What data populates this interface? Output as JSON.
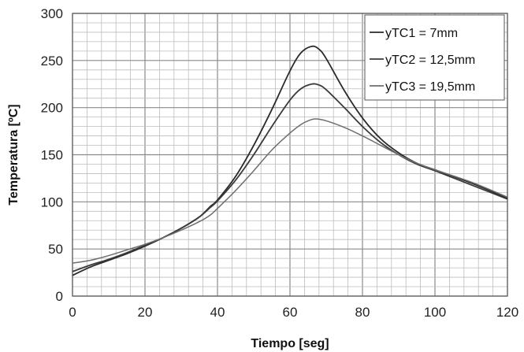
{
  "chart_data": {
    "type": "line",
    "xlabel": "Tiempo [seg]",
    "ylabel": "Temperatura [ºC]",
    "xlim": [
      0,
      120
    ],
    "ylim": [
      0,
      300
    ],
    "x_ticks": [
      0,
      20,
      40,
      60,
      80,
      100,
      120
    ],
    "y_ticks": [
      0,
      50,
      100,
      150,
      200,
      250,
      300
    ],
    "grid": true,
    "legend_position": "top-right",
    "series": [
      {
        "name": "yTC1 = 7mm",
        "color": "#2a2a2a",
        "x": [
          0,
          5,
          10,
          15,
          20,
          25,
          30,
          35,
          38,
          40,
          45,
          50,
          55,
          60,
          63,
          66,
          68,
          70,
          75,
          80,
          85,
          90,
          95,
          100,
          110,
          120
        ],
        "y": [
          22,
          31,
          38,
          45,
          53,
          62,
          72,
          84,
          95,
          102,
          127,
          160,
          198,
          239,
          258,
          265,
          262,
          252,
          218,
          189,
          167,
          152,
          141,
          134,
          120,
          104
        ]
      },
      {
        "name": "yTC2 = 12,5mm",
        "color": "#3a3a3a",
        "x": [
          0,
          5,
          10,
          15,
          20,
          25,
          30,
          35,
          38,
          40,
          45,
          50,
          55,
          60,
          63,
          66,
          68,
          70,
          75,
          80,
          85,
          90,
          95,
          100,
          110,
          120
        ],
        "y": [
          26,
          33,
          39,
          46,
          54,
          62,
          72,
          84,
          94,
          101,
          123,
          150,
          180,
          208,
          220,
          225,
          224,
          219,
          200,
          180,
          163,
          150,
          140,
          133,
          118,
          103
        ]
      },
      {
        "name": "yTC3 = 19,5mm",
        "color": "#6e6e6e",
        "x": [
          0,
          5,
          10,
          15,
          20,
          25,
          30,
          35,
          38,
          40,
          45,
          50,
          55,
          60,
          63,
          65,
          67,
          70,
          75,
          80,
          85,
          90,
          95,
          100,
          110,
          120
        ],
        "y": [
          35,
          38,
          43,
          49,
          55,
          62,
          70,
          79,
          86,
          93,
          112,
          133,
          155,
          173,
          182,
          186,
          188,
          186,
          179,
          170,
          160,
          150,
          141,
          134,
          121,
          105
        ]
      }
    ]
  }
}
